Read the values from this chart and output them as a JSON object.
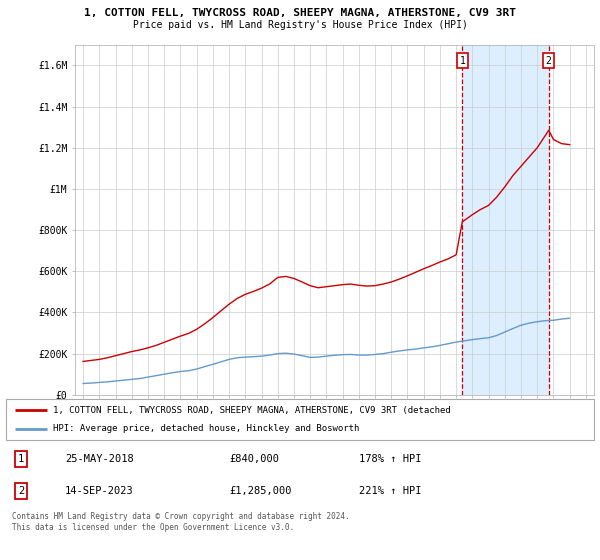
{
  "title": "1, COTTON FELL, TWYCROSS ROAD, SHEEPY MAGNA, ATHERSTONE, CV9 3RT",
  "subtitle": "Price paid vs. HM Land Registry's House Price Index (HPI)",
  "legend_line1": "1, COTTON FELL, TWYCROSS ROAD, SHEEPY MAGNA, ATHERSTONE, CV9 3RT (detached",
  "legend_line2": "HPI: Average price, detached house, Hinckley and Bosworth",
  "footer": "Contains HM Land Registry data © Crown copyright and database right 2024.\nThis data is licensed under the Open Government Licence v3.0.",
  "transaction1": {
    "label": "1",
    "date": "25-MAY-2018",
    "price": "£840,000",
    "hpi": "178% ↑ HPI"
  },
  "transaction2": {
    "label": "2",
    "date": "14-SEP-2023",
    "price": "£1,285,000",
    "hpi": "221% ↑ HPI"
  },
  "ylim": [
    0,
    1700000
  ],
  "yticks": [
    0,
    200000,
    400000,
    600000,
    800000,
    1000000,
    1200000,
    1400000,
    1600000
  ],
  "ytick_labels": [
    "£0",
    "£200K",
    "£400K",
    "£600K",
    "£800K",
    "£1M",
    "£1.2M",
    "£1.4M",
    "£1.6M"
  ],
  "red_line_color": "#cc0000",
  "blue_line_color": "#6699cc",
  "shaded_color": "#ddeeff",
  "dashed_line_color": "#cc0000",
  "background_color": "#ffffff",
  "grid_color": "#cccccc",
  "marker1_year": 2018.38,
  "marker2_year": 2023.71,
  "xlim": [
    1994.5,
    2026.5
  ],
  "x_start": 1995,
  "x_end": 2026,
  "hpi_data": {
    "years": [
      1995,
      1995.5,
      1996,
      1996.5,
      1997,
      1997.5,
      1998,
      1998.5,
      1999,
      1999.5,
      2000,
      2000.5,
      2001,
      2001.5,
      2002,
      2002.5,
      2003,
      2003.5,
      2004,
      2004.5,
      2005,
      2005.5,
      2006,
      2006.5,
      2007,
      2007.5,
      2008,
      2008.5,
      2009,
      2009.5,
      2010,
      2010.5,
      2011,
      2011.5,
      2012,
      2012.5,
      2013,
      2013.5,
      2014,
      2014.5,
      2015,
      2015.5,
      2016,
      2016.5,
      2017,
      2017.5,
      2018,
      2018.5,
      2019,
      2019.5,
      2020,
      2020.5,
      2021,
      2021.5,
      2022,
      2022.5,
      2023,
      2023.5,
      2024,
      2024.5,
      2025
    ],
    "values": [
      55000,
      57000,
      60000,
      63000,
      67000,
      71000,
      75000,
      79000,
      86000,
      93000,
      100000,
      107000,
      113000,
      117000,
      125000,
      137000,
      148000,
      160000,
      172000,
      180000,
      183000,
      185000,
      188000,
      193000,
      200000,
      202000,
      198000,
      190000,
      182000,
      183000,
      188000,
      192000,
      195000,
      196000,
      193000,
      193000,
      196000,
      200000,
      207000,
      213000,
      218000,
      222000,
      228000,
      233000,
      240000,
      248000,
      256000,
      262000,
      268000,
      273000,
      277000,
      288000,
      305000,
      322000,
      338000,
      348000,
      355000,
      360000,
      362000,
      368000,
      372000
    ]
  },
  "red_line_data": {
    "years": [
      1995,
      1995.5,
      1996,
      1996.5,
      1997,
      1997.5,
      1998,
      1998.5,
      1999,
      1999.5,
      2000,
      2000.5,
      2001,
      2001.5,
      2002,
      2002.5,
      2003,
      2003.5,
      2004,
      2004.5,
      2005,
      2005.5,
      2006,
      2006.5,
      2007,
      2007.5,
      2008,
      2008.5,
      2009,
      2009.5,
      2010,
      2010.5,
      2011,
      2011.5,
      2012,
      2012.5,
      2013,
      2013.5,
      2014,
      2014.5,
      2015,
      2015.5,
      2016,
      2016.5,
      2017,
      2017.5,
      2018,
      2018.38,
      2019,
      2019.5,
      2020,
      2020.5,
      2021,
      2021.5,
      2022,
      2022.5,
      2023,
      2023.71,
      2024,
      2024.5,
      2025
    ],
    "values": [
      162000,
      167000,
      172000,
      180000,
      190000,
      200000,
      210000,
      218000,
      228000,
      240000,
      255000,
      270000,
      285000,
      298000,
      318000,
      345000,
      375000,
      408000,
      440000,
      468000,
      488000,
      502000,
      518000,
      538000,
      570000,
      575000,
      565000,
      548000,
      530000,
      520000,
      525000,
      530000,
      535000,
      538000,
      532000,
      528000,
      530000,
      538000,
      548000,
      562000,
      578000,
      595000,
      612000,
      628000,
      645000,
      660000,
      680000,
      840000,
      875000,
      900000,
      920000,
      960000,
      1010000,
      1065000,
      1110000,
      1155000,
      1200000,
      1285000,
      1240000,
      1220000,
      1215000
    ]
  }
}
